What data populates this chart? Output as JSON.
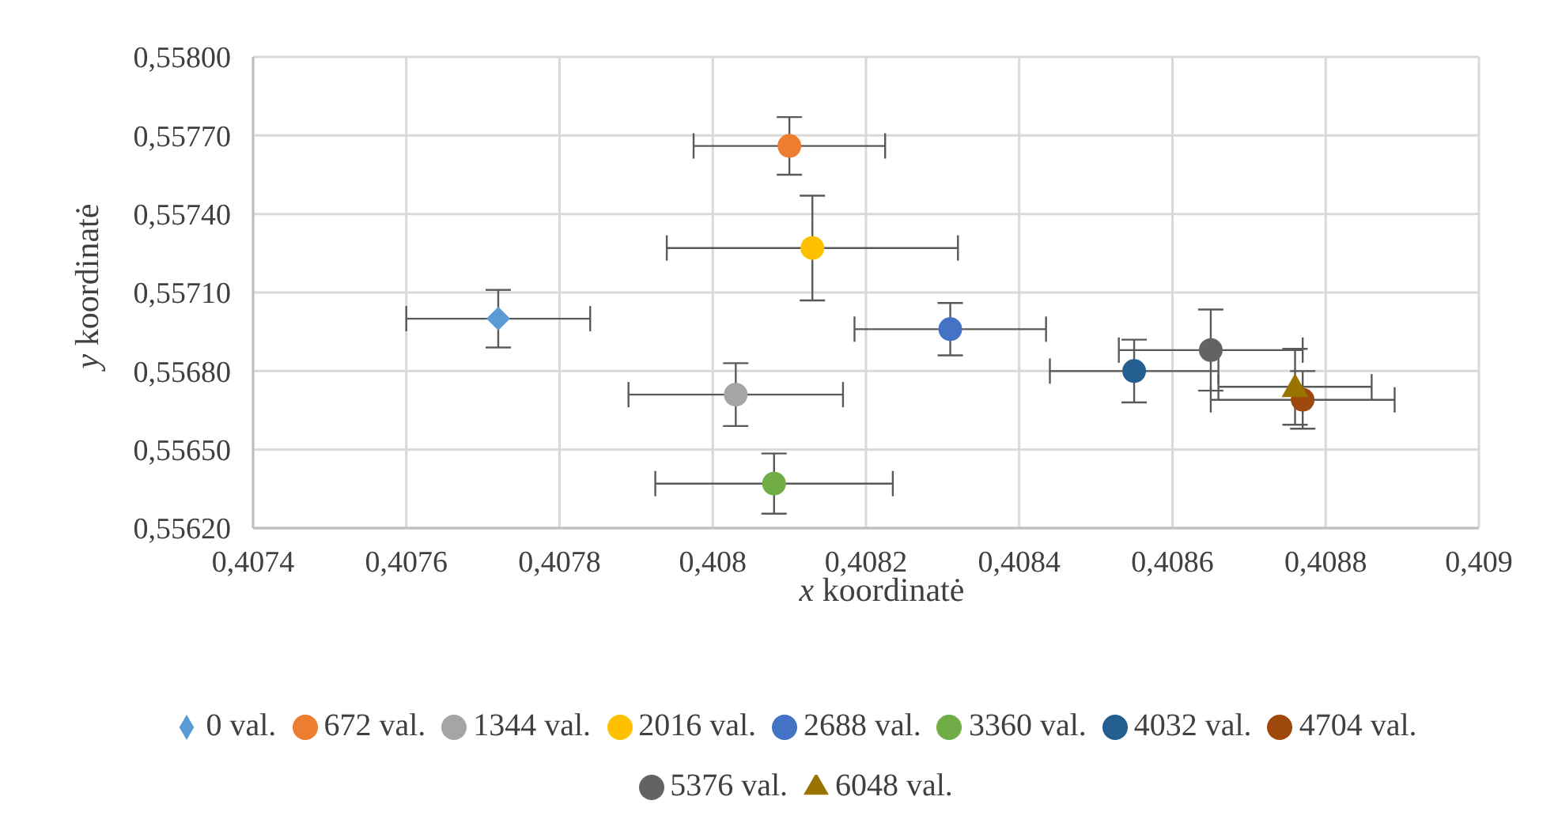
{
  "chart_data": {
    "type": "scatter",
    "xlabel": "x koordinatė",
    "ylabel": "y koordinatė",
    "legend": "bottom",
    "grid": true,
    "xlim": [
      0.4074,
      0.409
    ],
    "ylim": [
      0.5562,
      0.558
    ],
    "xticks": [
      {
        "value": 0.4074,
        "label": "0,4074"
      },
      {
        "value": 0.4076,
        "label": "0,4076"
      },
      {
        "value": 0.4078,
        "label": "0,4078"
      },
      {
        "value": 0.408,
        "label": "0,408"
      },
      {
        "value": 0.4082,
        "label": "0,4082"
      },
      {
        "value": 0.4084,
        "label": "0,4084"
      },
      {
        "value": 0.4086,
        "label": "0,4086"
      },
      {
        "value": 0.4088,
        "label": "0,4088"
      },
      {
        "value": 0.409,
        "label": "0,409"
      }
    ],
    "yticks": [
      {
        "value": 0.5562,
        "label": "0,55620"
      },
      {
        "value": 0.5565,
        "label": "0,55650"
      },
      {
        "value": 0.5568,
        "label": "0,55680"
      },
      {
        "value": 0.5571,
        "label": "0,55710"
      },
      {
        "value": 0.5574,
        "label": "0,55740"
      },
      {
        "value": 0.5577,
        "label": "0,55770"
      },
      {
        "value": 0.558,
        "label": "0,55800"
      }
    ],
    "series": [
      {
        "name": "0 val.",
        "color": "#5b9bd5",
        "marker": "diamond",
        "x": [
          0.40772
        ],
        "values": [
          0.557
        ],
        "xerrors": [
          0.00012
        ],
        "errors": [
          0.00011
        ]
      },
      {
        "name": "672 val.",
        "color": "#ed7d31",
        "marker": "circle",
        "x": [
          0.4081
        ],
        "values": [
          0.55766
        ],
        "xerrors": [
          0.000125
        ],
        "errors": [
          0.00011
        ]
      },
      {
        "name": "1344 val.",
        "color": "#a5a5a5",
        "marker": "circle",
        "x": [
          0.40803
        ],
        "values": [
          0.55671
        ],
        "xerrors": [
          0.00014
        ],
        "errors": [
          0.00012
        ]
      },
      {
        "name": "2016 val.",
        "color": "#ffc000",
        "marker": "circle",
        "x": [
          0.40813
        ],
        "values": [
          0.55727
        ],
        "xerrors": [
          0.00019
        ],
        "errors": [
          0.0002
        ]
      },
      {
        "name": "2688 val.",
        "color": "#4472c4",
        "marker": "circle",
        "x": [
          0.40831
        ],
        "values": [
          0.55696
        ],
        "xerrors": [
          0.000125
        ],
        "errors": [
          0.0001
        ]
      },
      {
        "name": "3360 val.",
        "color": "#70ad47",
        "marker": "circle",
        "x": [
          0.40808
        ],
        "values": [
          0.55637
        ],
        "xerrors": [
          0.000155
        ],
        "errors": [
          0.000115
        ]
      },
      {
        "name": "4032 val.",
        "color": "#255e91",
        "marker": "circle",
        "x": [
          0.40855
        ],
        "values": [
          0.5568
        ],
        "xerrors": [
          0.00011
        ],
        "errors": [
          0.00012
        ]
      },
      {
        "name": "4704 val.",
        "color": "#9e480e",
        "marker": "circle",
        "x": [
          0.40877
        ],
        "values": [
          0.55669
        ],
        "xerrors": [
          0.00012
        ],
        "errors": [
          0.00011
        ]
      },
      {
        "name": "5376 val.",
        "color": "#636363",
        "marker": "circle",
        "x": [
          0.40865
        ],
        "values": [
          0.55688
        ],
        "xerrors": [
          0.00012
        ],
        "errors": [
          0.000155
        ]
      },
      {
        "name": "6048 val.",
        "color": "#997300",
        "marker": "triangle",
        "x": [
          0.40876
        ],
        "values": [
          0.55674
        ],
        "xerrors": [
          0.0001
        ],
        "errors": [
          0.000145
        ]
      }
    ]
  }
}
